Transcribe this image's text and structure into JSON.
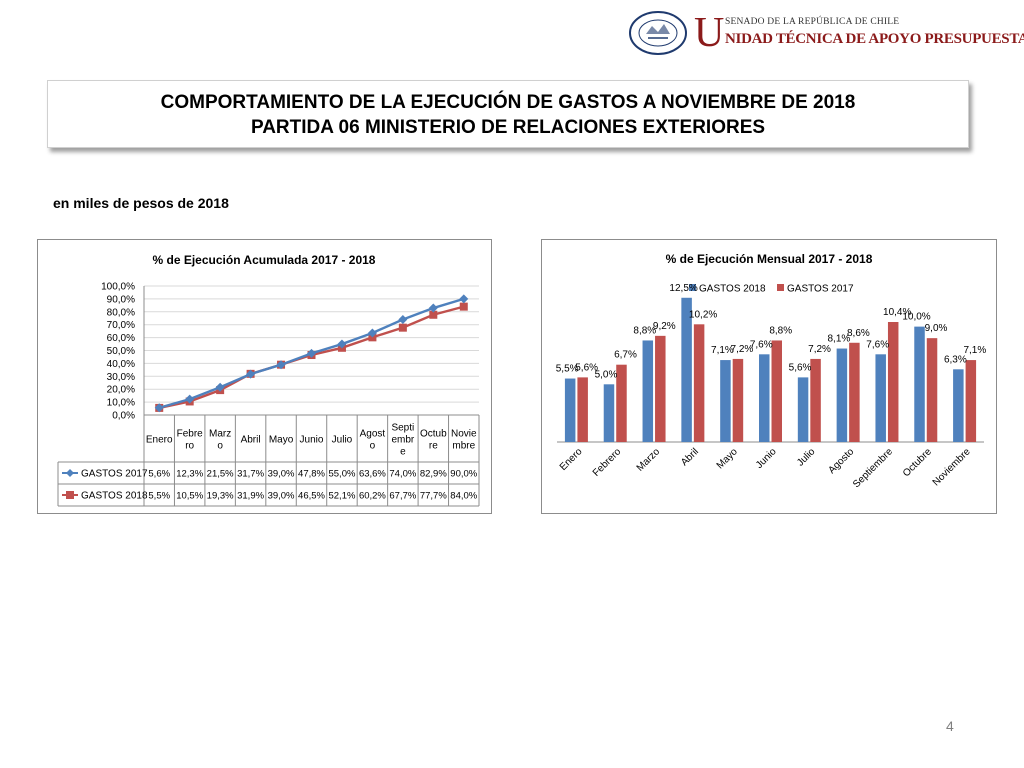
{
  "header": {
    "logo_senate_text": "SENADO DE LA REPÚBLICA DE CHILE",
    "logo_u": "U",
    "logo_unit_text": "NIDAD TÉCNICA DE APOYO PRESUPUESTARIO",
    "seal_text": "REPÚBLICA DE CHILE",
    "seal_bottom": "SENADO"
  },
  "title": {
    "line1": "COMPORTAMIENTO DE LA EJECUCIÓN DE GASTOS A NOVIEMBRE DE 2018",
    "line2": "PARTIDA 06 MINISTERIO DE RELACIONES EXTERIORES"
  },
  "subtitle": "en miles de pesos de 2018",
  "page_number": "4",
  "colors": {
    "gastos2017": "#4f81bd",
    "gastos2018": "#c0504d",
    "seal": "#1f3a6e",
    "logo_accent": "#8b1a1a"
  },
  "chart_data": [
    {
      "type": "line",
      "title": "% de Ejecución Acumulada 2017 - 2018",
      "categories": [
        "Enero",
        "Febrero",
        "Marzo",
        "Abril",
        "Mayo",
        "Junio",
        "Julio",
        "Agosto",
        "Septiembre",
        "Octubre",
        "Noviembre"
      ],
      "category_labels_wrapped": [
        [
          "Enero"
        ],
        [
          "Febre",
          "ro"
        ],
        [
          "Marz",
          "o"
        ],
        [
          "Abril"
        ],
        [
          "Mayo"
        ],
        [
          "Junio"
        ],
        [
          "Julio"
        ],
        [
          "Agost",
          "o"
        ],
        [
          "Septi",
          "embr",
          "e"
        ],
        [
          "Octub",
          "re"
        ],
        [
          "Novie",
          "mbre"
        ]
      ],
      "series": [
        {
          "name": "GASTOS 2017",
          "marker": "diamond",
          "values": [
            5.6,
            12.3,
            21.5,
            31.7,
            39.0,
            47.8,
            55.0,
            63.6,
            74.0,
            82.9,
            90.0
          ],
          "labels": [
            "5,6%",
            "12,3%",
            "21,5%",
            "31,7%",
            "39,0%",
            "47,8%",
            "55,0%",
            "63,6%",
            "74,0%",
            "82,9%",
            "90,0%"
          ]
        },
        {
          "name": "GASTOS 2018",
          "marker": "square",
          "values": [
            5.5,
            10.5,
            19.3,
            31.9,
            39.0,
            46.5,
            52.1,
            60.2,
            67.7,
            77.7,
            84.0
          ],
          "labels": [
            "5,5%",
            "10,5%",
            "19,3%",
            "31,9%",
            "39,0%",
            "46,5%",
            "52,1%",
            "60,2%",
            "67,7%",
            "77,7%",
            "84,0%"
          ]
        }
      ],
      "ylim": [
        0,
        100
      ],
      "yticks": [
        "0,0%",
        "10,0%",
        "20,0%",
        "30,0%",
        "40,0%",
        "50,0%",
        "60,0%",
        "70,0%",
        "80,0%",
        "90,0%",
        "100,0%"
      ],
      "grid": true,
      "legend": "data-table"
    },
    {
      "type": "bar",
      "title": "% de Ejecución Mensual 2017 - 2018",
      "categories": [
        "Enero",
        "Febrero",
        "Marzo",
        "Abril",
        "Mayo",
        "Junio",
        "Julio",
        "Agosto",
        "Septiembre",
        "Octubre",
        "Noviembre"
      ],
      "series": [
        {
          "name": "GASTOS 2018",
          "values": [
            5.5,
            5.0,
            8.8,
            12.5,
            7.1,
            7.6,
            5.6,
            8.1,
            7.6,
            10.0,
            6.3
          ],
          "labels": [
            "5,5%",
            "5,0%",
            "8,8%",
            "12,5%",
            "7,1%",
            "7,6%",
            "5,6%",
            "8,1%",
            "7,6%",
            "10,0%",
            "6,3%"
          ]
        },
        {
          "name": "GASTOS 2017",
          "values": [
            5.6,
            6.7,
            9.2,
            10.2,
            7.2,
            8.8,
            7.2,
            8.6,
            10.4,
            9.0,
            7.1
          ],
          "labels": [
            "5,6%",
            "6,7%",
            "9,2%",
            "10,2%",
            "7,2%",
            "8,8%",
            "7,2%",
            "8,6%",
            "10,4%",
            "9,0%",
            "7,1%"
          ]
        }
      ],
      "ylim": [
        0,
        13
      ],
      "grid": false,
      "legend": "top"
    }
  ]
}
